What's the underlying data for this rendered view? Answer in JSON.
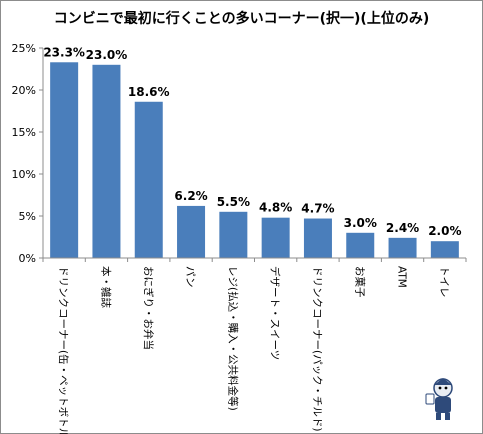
{
  "chart_data": {
    "type": "bar",
    "title": "コンビニで最初に行くことの多いコーナー(択一)(上位のみ)",
    "xlabel": "",
    "ylabel": "",
    "ylim": [
      0,
      25
    ],
    "y_ticks": [
      "0%",
      "5%",
      "10%",
      "15%",
      "20%",
      "25%"
    ],
    "grid": false,
    "bar_color": "#4a7ebb",
    "categories": [
      "ドリンクコーナー(缶・ペットボトル)",
      "本・雑誌",
      "おにぎり・お弁当",
      "パン",
      "レジ(払込・購入・公共料金等)",
      "デザート・スイーツ",
      "ドリンクコーナー(パック・チルド)",
      "お菓子",
      "ATM",
      "トイレ"
    ],
    "values": [
      23.3,
      23.0,
      18.6,
      6.2,
      5.5,
      4.8,
      4.7,
      3.0,
      2.4,
      2.0
    ],
    "data_labels": [
      "23.3%",
      "23.0%",
      "18.6%",
      "6.2%",
      "5.5%",
      "4.8%",
      "4.7%",
      "3.0%",
      "2.4%",
      "2.0%"
    ]
  }
}
